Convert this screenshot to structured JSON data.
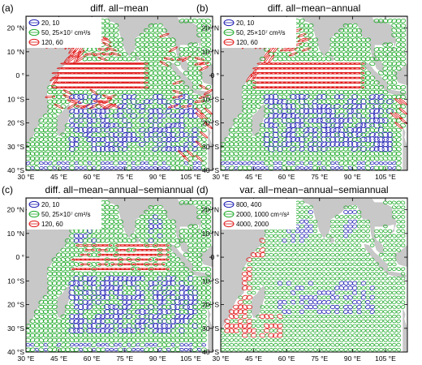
{
  "colors": {
    "land": "#c8c8c8",
    "ocean": "#ffffff",
    "blue": "#1f1fb4",
    "green": "#1faa2a",
    "red": "#e01818",
    "frame": "#000000"
  },
  "axes": {
    "lon_ticks": [
      "30 °E",
      "45 °E",
      "60 °E",
      "75 °E",
      "90 °E",
      "105 °E"
    ],
    "lat_ticks": [
      "20 °N",
      "10 °N",
      "0 °",
      "10 °S",
      "20 °S",
      "30 °S",
      "40 °S"
    ],
    "lon_range": [
      30,
      115
    ],
    "lat_range": [
      -40,
      25
    ]
  },
  "panels": [
    {
      "label": "(a)",
      "title": "diff. all−mean",
      "legend": [
        {
          "color": "blue",
          "text": "20, 10"
        },
        {
          "color": "green",
          "text": "50, 25×10⁷ cm²/s"
        },
        {
          "color": "red",
          "text": "120, 60"
        }
      ],
      "pattern": "strong_equatorial"
    },
    {
      "label": "(b)",
      "title": "diff. all−mean−annual",
      "legend": [
        {
          "color": "blue",
          "text": "20, 10"
        },
        {
          "color": "green",
          "text": "50, 25×10⁷ cm²/s"
        },
        {
          "color": "red",
          "text": "120, 60"
        }
      ],
      "pattern": "equatorial"
    },
    {
      "label": "(c)",
      "title": "diff. all−mean−annual−semiannual",
      "legend": [
        {
          "color": "blue",
          "text": "20, 10"
        },
        {
          "color": "green",
          "text": "50, 25×10⁷ cm²/s"
        },
        {
          "color": "red",
          "text": "120, 60"
        }
      ],
      "pattern": "weak_equatorial"
    },
    {
      "label": "(d)",
      "title": "var. all−mean−annual−semiannual",
      "legend": [
        {
          "color": "blue",
          "text": "800, 400"
        },
        {
          "color": "green",
          "text": "2000, 1000 cm⁴/s²"
        },
        {
          "color": "red",
          "text": "4000, 2000"
        }
      ],
      "pattern": "variance"
    }
  ]
}
